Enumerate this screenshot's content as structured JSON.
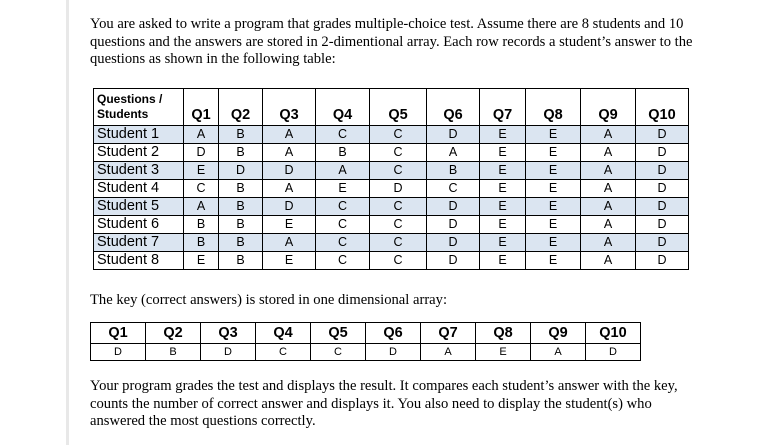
{
  "intro": "You are asked to write a program that grades multiple-choice test. Assume there are 8 students and 10 questions and the answers are stored in 2-dimentional array. Each row records a student’s answer to the questions as shown in the following table:",
  "answers_table": {
    "corner_line1": "Questions /",
    "corner_line2": "Students",
    "questions": [
      "Q1",
      "Q2",
      "Q3",
      "Q4",
      "Q5",
      "Q6",
      "Q7",
      "Q8",
      "Q9",
      "Q10"
    ],
    "rows": [
      {
        "student": "Student 1",
        "answers": [
          "A",
          "B",
          "A",
          "C",
          "C",
          "D",
          "E",
          "E",
          "A",
          "D"
        ]
      },
      {
        "student": "Student 2",
        "answers": [
          "D",
          "B",
          "A",
          "B",
          "C",
          "A",
          "E",
          "E",
          "A",
          "D"
        ]
      },
      {
        "student": "Student 3",
        "answers": [
          "E",
          "D",
          "D",
          "A",
          "C",
          "B",
          "E",
          "E",
          "A",
          "D"
        ]
      },
      {
        "student": "Student 4",
        "answers": [
          "C",
          "B",
          "A",
          "E",
          "D",
          "C",
          "E",
          "E",
          "A",
          "D"
        ]
      },
      {
        "student": "Student 5",
        "answers": [
          "A",
          "B",
          "D",
          "C",
          "C",
          "D",
          "E",
          "E",
          "A",
          "D"
        ]
      },
      {
        "student": "Student 6",
        "answers": [
          "B",
          "B",
          "E",
          "C",
          "C",
          "D",
          "E",
          "E",
          "A",
          "D"
        ]
      },
      {
        "student": "Student 7",
        "answers": [
          "B",
          "B",
          "A",
          "C",
          "C",
          "D",
          "E",
          "E",
          "A",
          "D"
        ]
      },
      {
        "student": "Student 8",
        "answers": [
          "E",
          "B",
          "E",
          "C",
          "C",
          "D",
          "E",
          "E",
          "A",
          "D"
        ]
      }
    ]
  },
  "key_intro": "The key (correct answers) is stored in one dimensional array:",
  "key_table": {
    "questions": [
      "Q1",
      "Q2",
      "Q3",
      "Q4",
      "Q5",
      "Q6",
      "Q7",
      "Q8",
      "Q9",
      "Q10"
    ],
    "answers": [
      "D",
      "B",
      "D",
      "C",
      "C",
      "D",
      "A",
      "E",
      "A",
      "D"
    ]
  },
  "outro": "Your program grades the test and displays the result. It compares each student’s answer with the key, counts the number of correct answer and displays it. You also need to display the student(s) who answered the most questions correctly.",
  "colors": {
    "row_band": "#dbe5f1"
  }
}
